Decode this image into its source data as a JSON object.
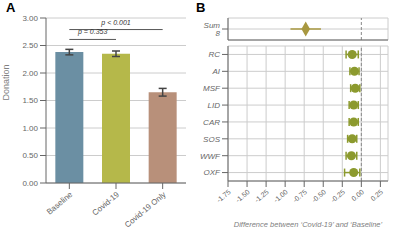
{
  "chart_data": [
    {
      "type": "bar",
      "title": "A",
      "categories": [
        "Baseline",
        "Covid-19",
        "Covid-19 Only"
      ],
      "values": [
        2.38,
        2.35,
        1.65
      ],
      "errors": [
        0.05,
        0.05,
        0.07
      ],
      "colors": [
        "#6b8fa3",
        "#b5b84a",
        "#b8907a"
      ],
      "ylabel": "Donation",
      "ylim": [
        0,
        3.0
      ],
      "yticks": [
        {
          "value": 0,
          "label": "0.00"
        },
        {
          "value": 0.5,
          "label": "0.50"
        },
        {
          "value": 1,
          "label": "1.00"
        },
        {
          "value": 1.5,
          "label": "1.50"
        },
        {
          "value": 2,
          "label": "2.00"
        },
        {
          "value": 2.5,
          "label": "2.50"
        },
        {
          "value": 3,
          "label": "3.00"
        }
      ],
      "grid": "y",
      "annotations": [
        {
          "text": "p = 0.353",
          "from": "Baseline",
          "to": "Covid-19"
        },
        {
          "text": "p < 0.001",
          "from": "Baseline",
          "to": "Covid-19 Only"
        }
      ]
    },
    {
      "type": "forest",
      "title": "B",
      "orientation": "horizontal",
      "categories": [
        "Sum 8"
      ],
      "values": [
        -0.73
      ],
      "ci_low": [
        -0.93
      ],
      "ci_high": [
        -0.53
      ],
      "color": "#a89840",
      "marker": "diamond",
      "xlim": [
        -1.75,
        0.35
      ],
      "xticks": [
        -1.75,
        -1.5,
        -1.25,
        -1,
        -0.75,
        -0.5,
        -0.25,
        0,
        0.25
      ],
      "reference_lines": [
        {
          "x": 0,
          "line_style": "dashed"
        }
      ],
      "grid": true,
      "tick_labels": "y"
    },
    {
      "type": "forest",
      "orientation": "horizontal",
      "categories": [
        "OXF",
        "WWF",
        "SOS",
        "CAR",
        "LID",
        "MSF",
        "AI",
        "RC"
      ],
      "values": [
        -0.1,
        -0.13,
        -0.12,
        -0.1,
        -0.1,
        -0.08,
        -0.09,
        -0.12
      ],
      "ci_low": [
        -0.22,
        -0.2,
        -0.18,
        -0.16,
        -0.16,
        -0.14,
        -0.15,
        -0.2
      ],
      "ci_high": [
        -0.02,
        -0.06,
        -0.06,
        -0.04,
        -0.04,
        -0.02,
        -0.03,
        -0.04
      ],
      "color": "#8c9a2e",
      "marker": "circle",
      "xlim": [
        -1.75,
        0.35
      ],
      "xticks": [
        -1.75,
        {
          "value": -1.5,
          "label": "-1.50"
        },
        -1.25,
        {
          "value": -1,
          "label": "-1.00"
        },
        -0.75,
        {
          "value": -0.5,
          "label": "-0.50"
        },
        -0.25,
        {
          "value": 0,
          "label": "0.00"
        },
        0.25
      ],
      "xlabel": "Difference between ‘Covid-19’ and ‘Baseline’",
      "reference_lines": [
        {
          "x": 0,
          "line_style": "dashed"
        }
      ],
      "grid": true
    }
  ]
}
